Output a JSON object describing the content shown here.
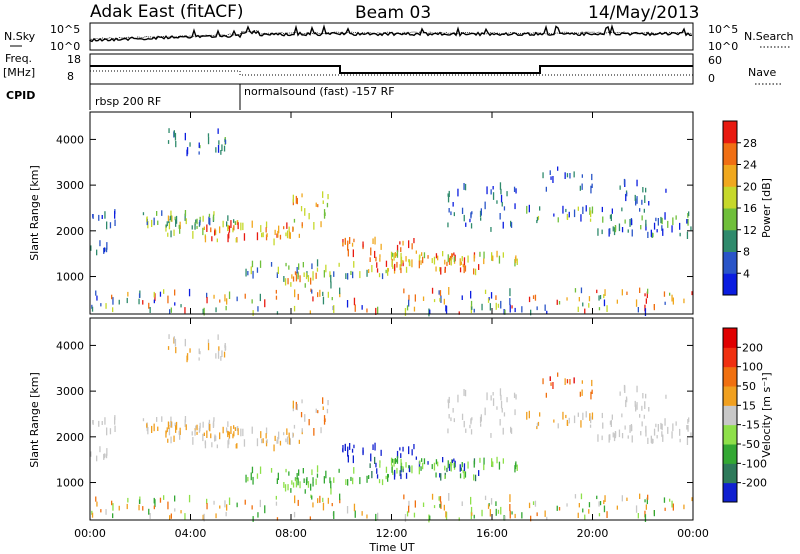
{
  "header": {
    "title_left": "Adak East (fitACF)",
    "title_center": "Beam 03",
    "title_right": "14/May/2013"
  },
  "strips": {
    "nsky_label": "N.Sky",
    "nsky_ticks": [
      "10^5",
      "10^0"
    ],
    "nsearch_label": "N.Search",
    "freq_label": "Freq.",
    "freq_unit": "[MHz]",
    "freq_ticks": [
      "18",
      "8"
    ],
    "nave_label": "Nave",
    "nave_ticks": [
      "60",
      "0"
    ],
    "cpid_label": "CPID",
    "cpid_segments": [
      "rbsp 200 RF",
      "normalsound (fast) -157 RF"
    ]
  },
  "chart_data": [
    {
      "type": "heatmap",
      "name": "power",
      "ylabel": "Slant Range [km]",
      "xlabel": "Time UT",
      "x_ticks": [
        "00:00",
        "04:00",
        "08:00",
        "12:00",
        "16:00",
        "20:00",
        "00:00"
      ],
      "y_ticks": [
        1000,
        2000,
        3000,
        4000
      ],
      "ylim": [
        180,
        4600
      ],
      "xlim_hours": [
        0,
        24
      ],
      "colorbar": {
        "label": "Power [dB]",
        "ticks": [
          4,
          8,
          12,
          16,
          20,
          24,
          28
        ],
        "range": [
          0,
          32
        ],
        "colors": [
          "#0b1de0",
          "#2a55c8",
          "#2f8a6c",
          "#6fbf3a",
          "#c6d82b",
          "#f0a81e",
          "#f06f14",
          "#e81a10"
        ]
      }
    },
    {
      "type": "heatmap",
      "name": "velocity",
      "ylabel": "Slant Range [km]",
      "xlabel": "Time UT",
      "x_ticks": [
        "00:00",
        "04:00",
        "08:00",
        "12:00",
        "16:00",
        "20:00",
        "00:00"
      ],
      "y_ticks": [
        1000,
        2000,
        3000,
        4000
      ],
      "ylim": [
        180,
        4600
      ],
      "xlim_hours": [
        0,
        24
      ],
      "colorbar": {
        "label": "Velocity [m s⁻¹]",
        "ticks": [
          "200",
          "100",
          "50",
          "15",
          "-15",
          "-50",
          "-100",
          "-200"
        ],
        "colors": [
          "#1020d0",
          "#2e7a5a",
          "#33a833",
          "#8ee04a",
          "#c8c8c8",
          "#f0a020",
          "#f07010",
          "#f03010",
          "#e00000"
        ]
      }
    }
  ],
  "colors": {
    "axis": "#000000",
    "background": "#ffffff"
  }
}
